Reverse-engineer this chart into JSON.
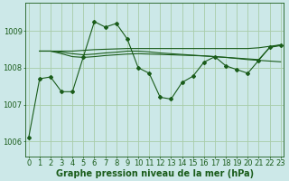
{
  "background_color": "#cce8e8",
  "grid_color": "#a8cca8",
  "line_color": "#1a5c1a",
  "xlabel": "Graphe pression niveau de la mer (hPa)",
  "xlabel_fontsize": 7,
  "tick_fontsize": 6,
  "ylim": [
    1005.6,
    1009.75
  ],
  "yticks": [
    1006,
    1007,
    1008,
    1009
  ],
  "xlim": [
    -0.3,
    23.3
  ],
  "xticks": [
    0,
    1,
    2,
    3,
    4,
    5,
    6,
    7,
    8,
    9,
    10,
    11,
    12,
    13,
    14,
    15,
    16,
    17,
    18,
    19,
    20,
    21,
    22,
    23
  ],
  "series1_x": [
    0,
    1,
    2,
    3,
    4,
    5,
    6,
    7,
    8,
    9,
    10,
    11,
    12,
    13,
    14,
    15,
    16,
    17,
    18,
    19,
    20,
    21,
    22,
    23
  ],
  "series1_y": [
    1006.1,
    1007.7,
    1007.75,
    1007.35,
    1007.35,
    1008.3,
    1009.25,
    1009.1,
    1009.2,
    1008.78,
    1008.0,
    1007.85,
    1007.2,
    1007.15,
    1007.6,
    1007.77,
    1008.15,
    1008.3,
    1008.05,
    1007.95,
    1007.85,
    1008.2,
    1008.55,
    1008.6
  ],
  "flat1_x": [
    1,
    2,
    3,
    4,
    5,
    6,
    7,
    8,
    9,
    10,
    11,
    12,
    13,
    14,
    15,
    16,
    17,
    18,
    19,
    20,
    21,
    22,
    23
  ],
  "flat1_y": [
    1008.45,
    1008.45,
    1008.45,
    1008.45,
    1008.47,
    1008.49,
    1008.5,
    1008.51,
    1008.52,
    1008.52,
    1008.52,
    1008.52,
    1008.52,
    1008.52,
    1008.52,
    1008.52,
    1008.52,
    1008.52,
    1008.52,
    1008.52,
    1008.54,
    1008.58,
    1008.62
  ],
  "flat2_x": [
    1,
    2,
    3,
    4,
    5,
    6,
    7,
    8,
    9,
    10,
    11,
    12,
    13,
    14,
    15,
    16,
    17,
    18,
    19,
    20,
    21,
    22,
    23
  ],
  "flat2_y": [
    1008.45,
    1008.45,
    1008.38,
    1008.3,
    1008.28,
    1008.3,
    1008.33,
    1008.35,
    1008.37,
    1008.38,
    1008.37,
    1008.36,
    1008.35,
    1008.34,
    1008.33,
    1008.32,
    1008.3,
    1008.28,
    1008.25,
    1008.22,
    1008.2,
    1008.18,
    1008.16
  ],
  "flat3_x": [
    1,
    2,
    3,
    4,
    5,
    6,
    7,
    8,
    9,
    10,
    11,
    12,
    13,
    14,
    15,
    16,
    17,
    18,
    19,
    20,
    21,
    22,
    23
  ],
  "flat3_y": [
    1008.45,
    1008.45,
    1008.42,
    1008.38,
    1008.35,
    1008.37,
    1008.4,
    1008.42,
    1008.45,
    1008.45,
    1008.43,
    1008.4,
    1008.38,
    1008.36,
    1008.34,
    1008.32,
    1008.3,
    1008.28,
    1008.26,
    1008.24,
    1008.22,
    1008.55,
    1008.62
  ],
  "figsize": [
    3.2,
    2.0
  ],
  "dpi": 100
}
